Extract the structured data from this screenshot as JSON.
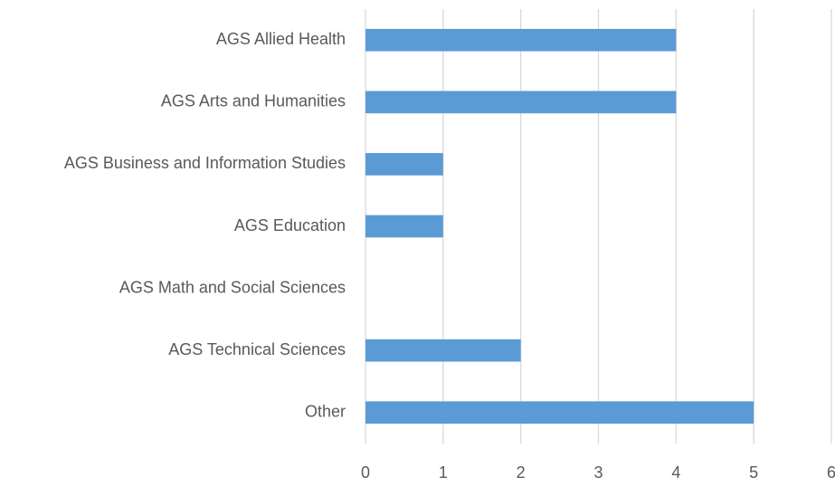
{
  "chart_data": {
    "type": "bar",
    "orientation": "horizontal",
    "categories": [
      "AGS Allied Health",
      "AGS Arts and Humanities",
      "AGS Business and Information Studies",
      "AGS Education",
      "AGS Math and Social Sciences",
      "AGS Technical Sciences",
      "Other"
    ],
    "values": [
      4,
      4,
      1,
      1,
      0,
      2,
      5
    ],
    "color": "#5b9bd5",
    "xlim": [
      0,
      6
    ],
    "xticks": [
      0,
      1,
      2,
      3,
      4,
      5,
      6
    ],
    "grid": true
  }
}
